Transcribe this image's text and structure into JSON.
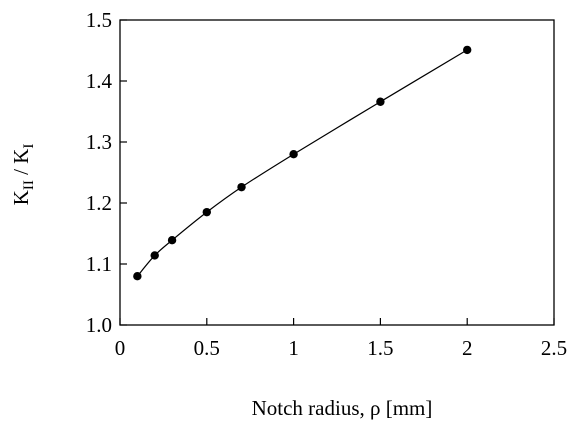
{
  "chart_data": {
    "type": "scatter",
    "title": "",
    "xlabel": "Notch radius, ρ [mm]",
    "ylabel": {
      "k_main_1": "K",
      "k_sub_1": "II",
      "separator": " / ",
      "k_main_2": "K",
      "k_sub_2": "I"
    },
    "xlim": [
      0,
      2.5
    ],
    "ylim": [
      1.0,
      1.5
    ],
    "xticks": [
      "0",
      "0.5",
      "1",
      "1.5",
      "2",
      "2.5"
    ],
    "yticks": [
      "1.0",
      "1.1",
      "1.2",
      "1.3",
      "1.4",
      "1.5"
    ],
    "grid": false,
    "legend": "none",
    "series": [
      {
        "x": [
          0.1,
          0.2,
          0.3,
          0.5,
          0.7,
          1.0,
          1.5,
          2.0
        ],
        "y": [
          1.08,
          1.114,
          1.139,
          1.185,
          1.226,
          1.28,
          1.366,
          1.451
        ],
        "marker": "filled-circle",
        "line": "smooth",
        "color": "#000000"
      }
    ]
  }
}
